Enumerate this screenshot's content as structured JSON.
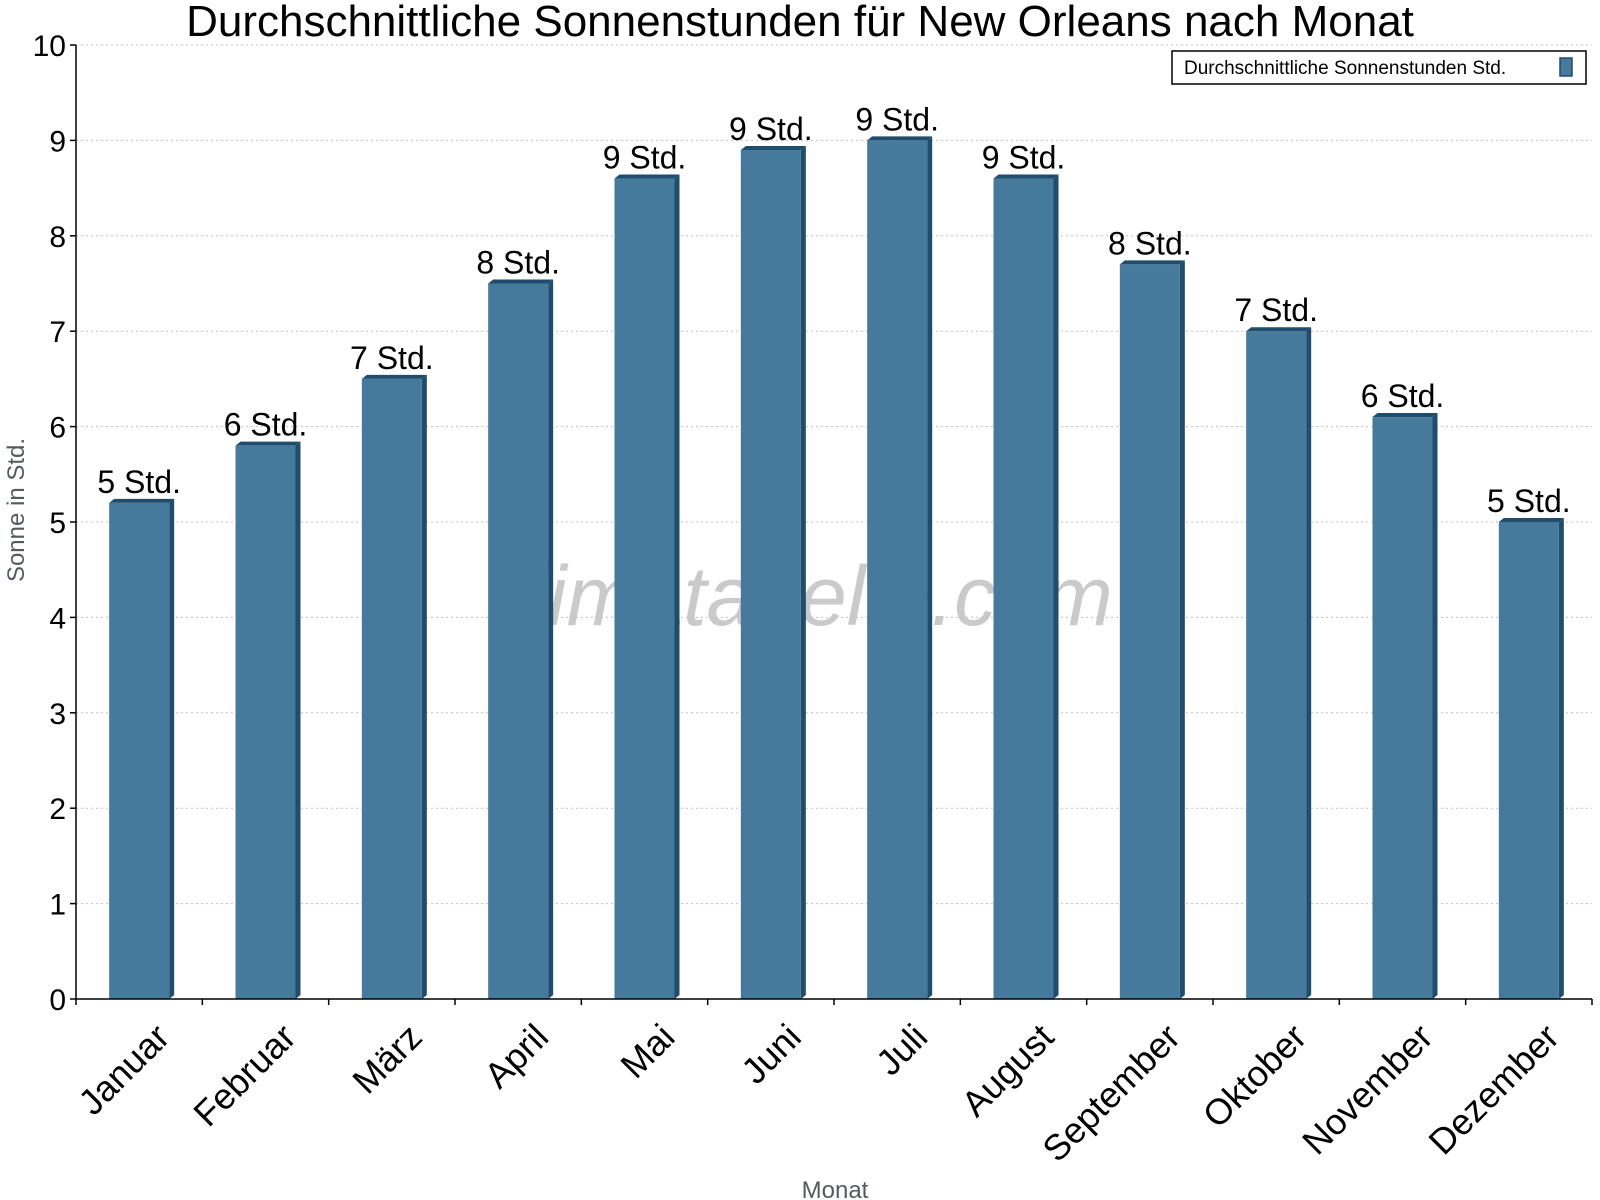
{
  "chart_data": {
    "type": "bar",
    "title": "Durchschnittliche Sonnenstunden für New Orleans nach Monat",
    "xlabel": "Monat",
    "ylabel": "Sonne in Std.",
    "ylim": [
      0,
      10
    ],
    "yticks": [
      "0",
      "1",
      "2",
      "3",
      "4",
      "5",
      "6",
      "7",
      "8",
      "9",
      "10"
    ],
    "grid": true,
    "legend_position": "top-right",
    "categories": [
      "Januar",
      "Februar",
      "März",
      "April",
      "Mai",
      "Juni",
      "Juli",
      "August",
      "September",
      "Oktober",
      "November",
      "Dezember"
    ],
    "series": [
      {
        "name": "Durchschnittliche Sonnenstunden Std.",
        "values": [
          5.2,
          5.8,
          6.5,
          7.5,
          8.6,
          8.9,
          9.0,
          8.6,
          7.7,
          7.0,
          6.1,
          5.0
        ],
        "data_labels": [
          "5 Std.",
          "6 Std.",
          "7 Std.",
          "8 Std.",
          "9 Std.",
          "9 Std.",
          "9 Std.",
          "9 Std.",
          "8 Std.",
          "7 Std.",
          "6 Std.",
          "5 Std."
        ],
        "color": "#457a9c",
        "edge_color": "#1f4d6b"
      }
    ],
    "watermark": "klimatabelle.com"
  }
}
